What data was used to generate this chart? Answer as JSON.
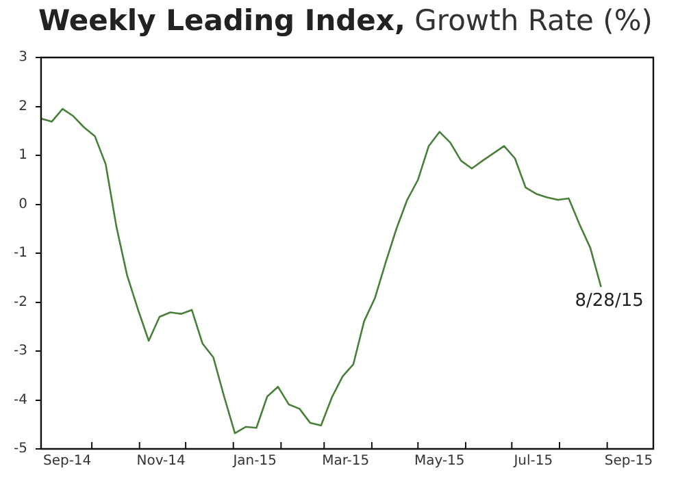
{
  "chart_data": {
    "type": "line",
    "title": "Weekly Leading Index,",
    "subtitle": "Growth Rate (%)",
    "x": [
      "2014-08-29",
      "2014-09-05",
      "2014-09-12",
      "2014-09-19",
      "2014-09-26",
      "2014-10-03",
      "2014-10-10",
      "2014-10-17",
      "2014-10-24",
      "2014-10-31",
      "2014-11-07",
      "2014-11-14",
      "2014-11-21",
      "2014-11-28",
      "2014-12-05",
      "2014-12-12",
      "2014-12-19",
      "2014-12-26",
      "2015-01-02",
      "2015-01-09",
      "2015-01-16",
      "2015-01-23",
      "2015-01-30",
      "2015-02-06",
      "2015-02-13",
      "2015-02-20",
      "2015-02-27",
      "2015-03-06",
      "2015-03-13",
      "2015-03-20",
      "2015-03-27",
      "2015-04-03",
      "2015-04-10",
      "2015-04-17",
      "2015-04-24",
      "2015-05-01",
      "2015-05-08",
      "2015-05-15",
      "2015-05-22",
      "2015-05-29",
      "2015-06-05",
      "2015-06-12",
      "2015-06-19",
      "2015-06-26",
      "2015-07-03",
      "2015-07-10",
      "2015-07-17",
      "2015-07-24",
      "2015-07-31",
      "2015-08-07",
      "2015-08-14",
      "2015-08-21",
      "2015-08-28"
    ],
    "series": [
      {
        "color": "#4a7f3a",
        "values": [
          1.75,
          1.69,
          1.95,
          1.8,
          1.57,
          1.39,
          0.82,
          -0.46,
          -1.46,
          -2.15,
          -2.79,
          -2.3,
          -2.21,
          -2.24,
          -2.16,
          -2.85,
          -3.13,
          -3.93,
          -4.68,
          -4.55,
          -4.57,
          -3.93,
          -3.73,
          -4.09,
          -4.18,
          -4.47,
          -4.52,
          -3.95,
          -3.52,
          -3.27,
          -2.39,
          -1.92,
          -1.19,
          -0.5,
          0.09,
          0.5,
          1.19,
          1.48,
          1.26,
          0.89,
          0.73,
          0.89,
          1.04,
          1.19,
          0.94,
          0.34,
          0.21,
          0.14,
          0.09,
          0.12,
          -0.41,
          -0.89,
          -1.69
        ]
      }
    ],
    "xlim": [
      "2014-08-29",
      "2015-10-01"
    ],
    "xticks": [
      {
        "value": "2014-09-15",
        "label": "Sep-14"
      },
      {
        "value": "2014-10-01",
        "label": null
      },
      {
        "value": "2014-11-01",
        "label": null
      },
      {
        "value": "2014-11-15",
        "label": "Nov-14"
      },
      {
        "value": "2014-12-01",
        "label": null
      },
      {
        "value": "2015-01-01",
        "label": null
      },
      {
        "value": "2015-01-15",
        "label": "Jan-15"
      },
      {
        "value": "2015-02-01",
        "label": null
      },
      {
        "value": "2015-03-01",
        "label": null
      },
      {
        "value": "2015-03-15",
        "label": "Mar-15"
      },
      {
        "value": "2015-04-01",
        "label": null
      },
      {
        "value": "2015-05-01",
        "label": null
      },
      {
        "value": "2015-05-15",
        "label": "May-15"
      },
      {
        "value": "2015-06-01",
        "label": null
      },
      {
        "value": "2015-07-01",
        "label": null
      },
      {
        "value": "2015-07-15",
        "label": "Jul-15"
      },
      {
        "value": "2015-08-01",
        "label": null
      },
      {
        "value": "2015-09-01",
        "label": null
      },
      {
        "value": "2015-09-15",
        "label": "Sep-15"
      }
    ],
    "ylim": [
      -5,
      3
    ],
    "yticks": [
      -5,
      -4,
      -3,
      -2,
      -1,
      0,
      1,
      2,
      3
    ],
    "annotations": [
      {
        "text": "8/28/15",
        "x": "2015-08-28",
        "y": -1.69
      }
    ],
    "grid": false,
    "legend": false,
    "marker": "none",
    "line_style": "solid"
  }
}
